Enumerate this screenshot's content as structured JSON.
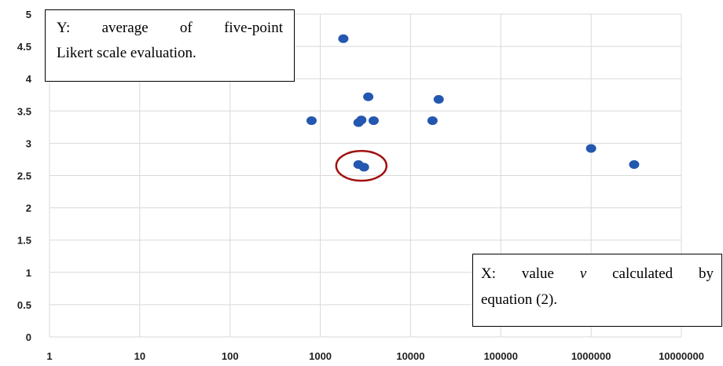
{
  "chart_data": {
    "type": "scatter",
    "x_scale": "log",
    "xlim": [
      1,
      10000000
    ],
    "ylim": [
      0,
      5
    ],
    "x_ticks": [
      "1",
      "10",
      "100",
      "1000",
      "10000",
      "100000",
      "1000000",
      "10000000"
    ],
    "y_ticks": [
      "0",
      "0.5",
      "1",
      "1.5",
      "2",
      "2.5",
      "3",
      "3.5",
      "4",
      "4.5",
      "5"
    ],
    "grid": true,
    "point_color": "#2457b0",
    "highlight_color": "#a01010",
    "points": [
      {
        "x": 800,
        "y": 3.35
      },
      {
        "x": 1800,
        "y": 4.62
      },
      {
        "x": 2650,
        "y": 3.32
      },
      {
        "x": 2850,
        "y": 3.36
      },
      {
        "x": 3400,
        "y": 3.72
      },
      {
        "x": 3900,
        "y": 3.35
      },
      {
        "x": 17500,
        "y": 3.35
      },
      {
        "x": 20500,
        "y": 3.68
      },
      {
        "x": 2650,
        "y": 2.67
      },
      {
        "x": 3050,
        "y": 2.63
      },
      {
        "x": 1000000,
        "y": 2.92
      },
      {
        "x": 3000000,
        "y": 2.67
      }
    ],
    "highlight": {
      "x": 2850,
      "y": 2.65
    }
  },
  "notes": {
    "y_line1": "Y: average of five-point",
    "y_line2": "Likert scale evaluation.",
    "x_line1_pre": "X: value ",
    "x_line1_var": "v",
    "x_line1_post": " calculated by",
    "x_line2": "equation (2)."
  }
}
